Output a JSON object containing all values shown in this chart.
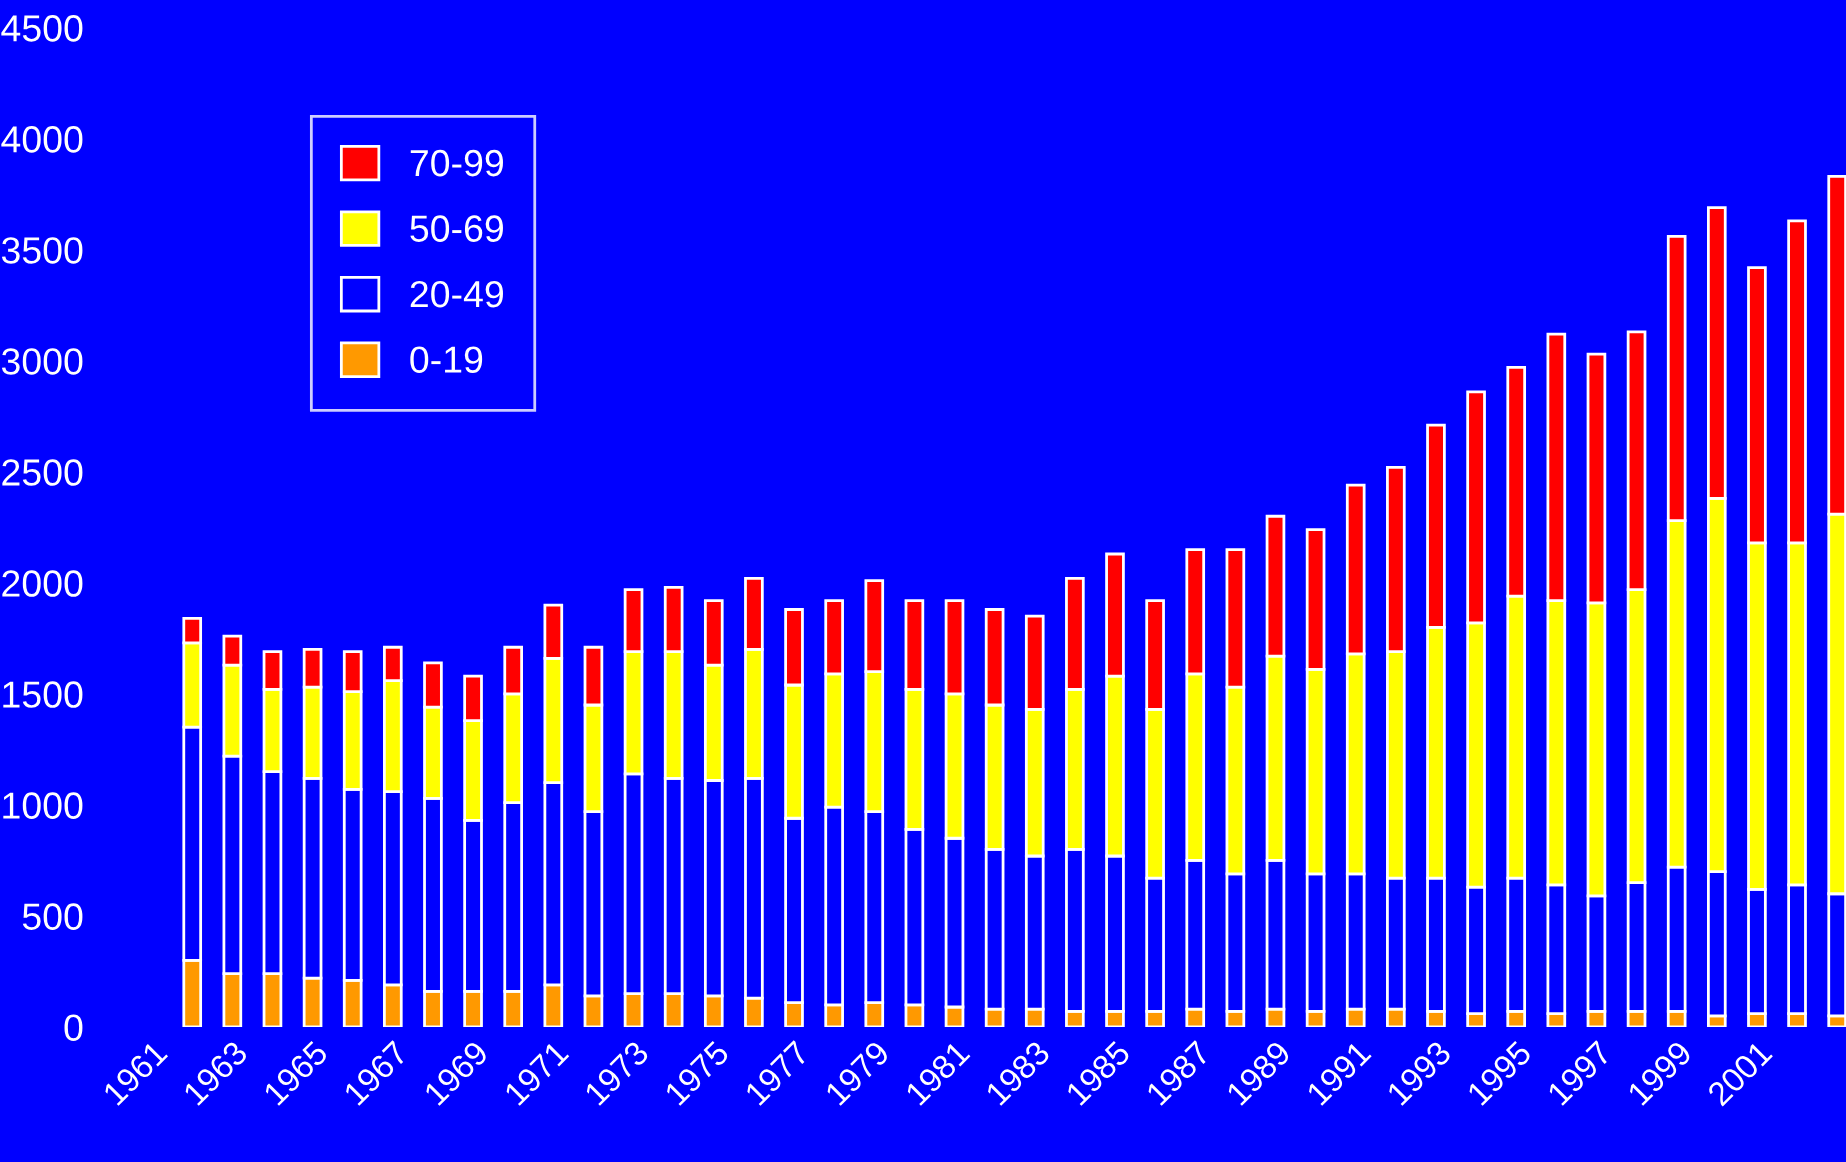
{
  "chart_data": {
    "type": "bar",
    "stacked": true,
    "categories": [
      "1961",
      null,
      "1963",
      null,
      "1965",
      null,
      "1967",
      null,
      "1969",
      null,
      "1971",
      null,
      "1973",
      null,
      "1975",
      null,
      "1977",
      null,
      "1979",
      null,
      "1981",
      null,
      "1983",
      null,
      "1985",
      null,
      "1987",
      null,
      "1989",
      null,
      "1991",
      null,
      "1993",
      null,
      "1995",
      null,
      "1997",
      null,
      "1999",
      null,
      "2001",
      null,
      null
    ],
    "series": [
      {
        "name": "0-19",
        "color": "#ff9900",
        "values": [
          null,
          300,
          240,
          240,
          220,
          210,
          190,
          160,
          160,
          160,
          190,
          140,
          150,
          150,
          140,
          130,
          110,
          100,
          110,
          100,
          90,
          80,
          80,
          70,
          70,
          70,
          80,
          70,
          80,
          70,
          80,
          80,
          70,
          60,
          70,
          60,
          70,
          70,
          70,
          50,
          60,
          60,
          50
        ]
      },
      {
        "name": "20-49",
        "color": "#0000ff",
        "values": [
          null,
          1050,
          980,
          910,
          900,
          860,
          870,
          870,
          770,
          850,
          910,
          830,
          990,
          970,
          970,
          990,
          830,
          890,
          860,
          790,
          760,
          720,
          690,
          730,
          700,
          600,
          670,
          620,
          670,
          620,
          610,
          590,
          600,
          570,
          600,
          580,
          520,
          580,
          650,
          650,
          560,
          580,
          550
        ]
      },
      {
        "name": "50-69",
        "color": "#ffff00",
        "values": [
          null,
          380,
          410,
          370,
          410,
          440,
          500,
          410,
          450,
          490,
          560,
          480,
          550,
          570,
          520,
          580,
          600,
          600,
          630,
          630,
          650,
          650,
          660,
          720,
          810,
          760,
          840,
          840,
          920,
          920,
          990,
          1020,
          1130,
          1190,
          1270,
          1280,
          1320,
          1320,
          1560,
          1680,
          1560,
          1540,
          1710
        ]
      },
      {
        "name": "70-99",
        "color": "#ff0000",
        "values": [
          null,
          110,
          130,
          170,
          170,
          180,
          150,
          200,
          200,
          210,
          240,
          260,
          280,
          290,
          290,
          320,
          340,
          330,
          410,
          400,
          420,
          430,
          420,
          500,
          550,
          490,
          560,
          620,
          630,
          630,
          760,
          830,
          910,
          1040,
          1030,
          1200,
          1120,
          1160,
          1280,
          1310,
          1240,
          1450,
          1520
        ]
      }
    ],
    "ylim": [
      0,
      4500
    ],
    "yticks": [
      0,
      500,
      1000,
      1500,
      2000,
      2500,
      3000,
      3500,
      4000,
      4500
    ],
    "grid": false,
    "legend": "top left"
  }
}
